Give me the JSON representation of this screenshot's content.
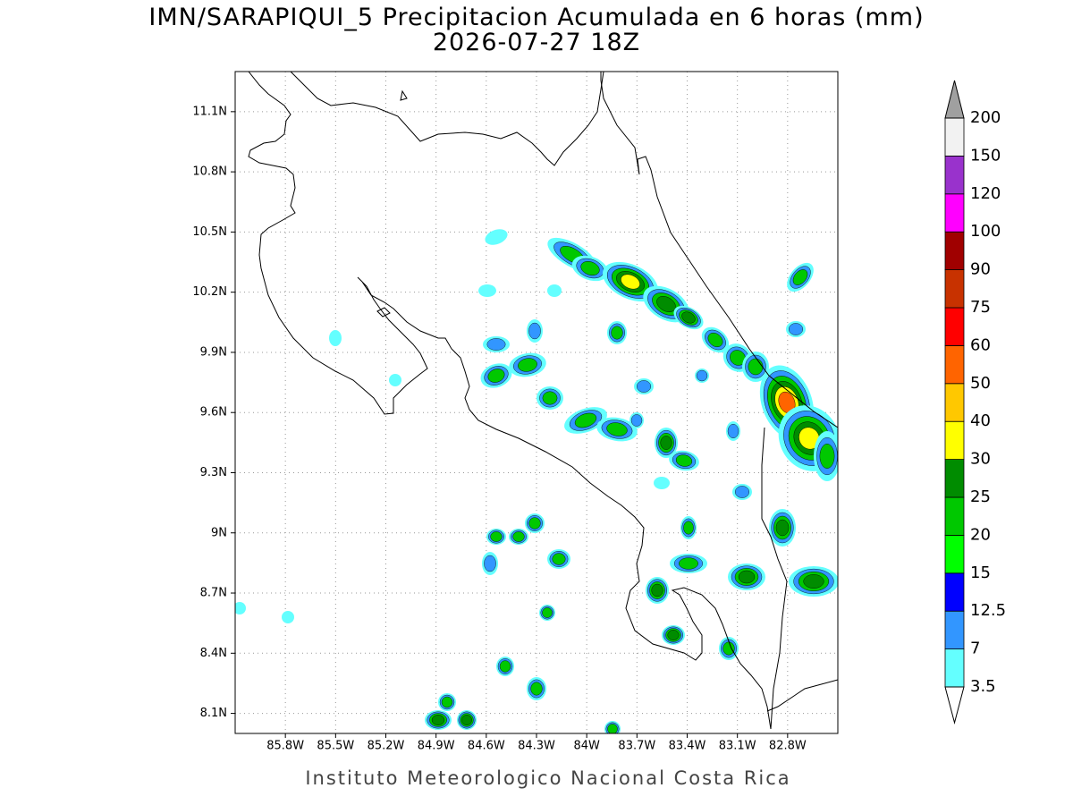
{
  "chart_data": {
    "type": "contour-map",
    "title": "IMN/SARAPIQUI_5 Precipitacion Acumulada en 6 horas (mm)",
    "subtitle": "2026-07-27 18Z",
    "footer": "Instituto Meteorologico Nacional Costa Rica",
    "xlim": [
      -86.1,
      -82.5
    ],
    "ylim": [
      8.0,
      11.3
    ],
    "xticks": [
      {
        "value": -85.8,
        "label": "85.8W"
      },
      {
        "value": -85.5,
        "label": "85.5W"
      },
      {
        "value": -85.2,
        "label": "85.2W"
      },
      {
        "value": -84.9,
        "label": "84.9W"
      },
      {
        "value": -84.6,
        "label": "84.6W"
      },
      {
        "value": -84.3,
        "label": "84.3W"
      },
      {
        "value": -84.0,
        "label": "84W"
      },
      {
        "value": -83.7,
        "label": "83.7W"
      },
      {
        "value": -83.4,
        "label": "83.4W"
      },
      {
        "value": -83.1,
        "label": "83.1W"
      },
      {
        "value": -82.8,
        "label": "82.8W"
      }
    ],
    "yticks": [
      {
        "value": 8.1,
        "label": "8.1N"
      },
      {
        "value": 8.4,
        "label": "8.4N"
      },
      {
        "value": 8.7,
        "label": "8.7N"
      },
      {
        "value": 9.0,
        "label": "9N"
      },
      {
        "value": 9.3,
        "label": "9.3N"
      },
      {
        "value": 9.6,
        "label": "9.6N"
      },
      {
        "value": 9.9,
        "label": "9.9N"
      },
      {
        "value": 10.2,
        "label": "10.2N"
      },
      {
        "value": 10.5,
        "label": "10.5N"
      },
      {
        "value": 10.8,
        "label": "10.8N"
      },
      {
        "value": 11.1,
        "label": "11.1N"
      }
    ],
    "grid": true,
    "colorbar": {
      "levels": [
        3.5,
        7,
        12.5,
        15,
        20,
        25,
        30,
        40,
        50,
        60,
        75,
        90,
        100,
        120,
        150,
        200
      ],
      "colors": [
        "#64ffff",
        "#3296ff",
        "#0000ff",
        "#00ff00",
        "#00c800",
        "#008c00",
        "#ffff00",
        "#ffc800",
        "#ff6400",
        "#ff0000",
        "#c83200",
        "#a00000",
        "#ff00ff",
        "#9932cc",
        "#f2f2f2"
      ],
      "over_color": "#a0a0a0",
      "under_color": "#ffffff"
    }
  }
}
